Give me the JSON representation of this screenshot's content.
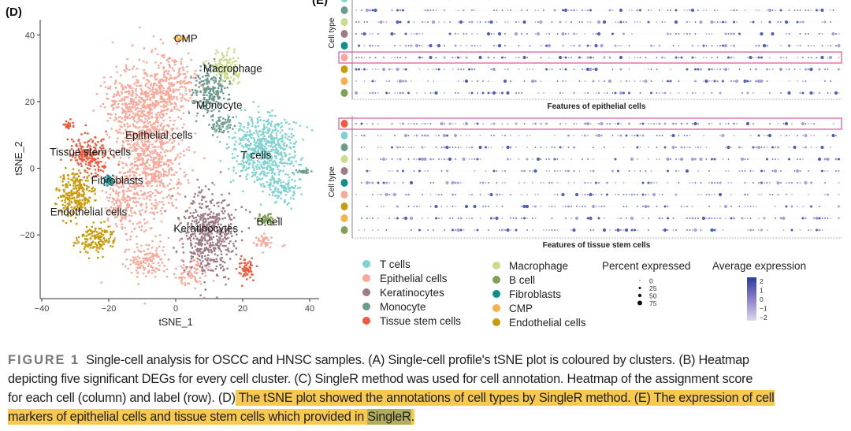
{
  "panel_d": {
    "label": "(D)"
  },
  "panel_e": {
    "label": "(E)"
  },
  "chart_data": [
    {
      "type": "scatter",
      "xlabel": "tSNE_1",
      "ylabel": "tSNE_2",
      "xlim": [
        -42,
        42
      ],
      "ylim": [
        -40,
        44
      ],
      "xticks": [
        -40,
        -20,
        0,
        20,
        40
      ],
      "yticks": [
        40,
        20,
        0,
        -20
      ],
      "grid": false,
      "clusters": [
        {
          "name": "Epithelial cells",
          "color": "#f9a899",
          "label_at": [
            -5,
            10
          ],
          "blobs": [
            [
              -8,
              5,
              7,
              15,
              900
            ],
            [
              -2,
              25,
              5,
              6,
              250
            ],
            [
              -13,
              20,
              6,
              6,
              250
            ],
            [
              -8,
              -28,
              5,
              3,
              120
            ],
            [
              5,
              -31,
              3,
              3,
              80
            ],
            [
              27,
              -22,
              2.5,
              1.5,
              40
            ],
            [
              -16,
              -10,
              3,
              6,
              150
            ]
          ]
        },
        {
          "name": "Macrophage",
          "color": "#c9dc8a",
          "label_at": [
            17,
            30
          ],
          "blobs": [
            [
              15,
              30,
              2.8,
              3,
              130
            ]
          ]
        },
        {
          "name": "Monocyte",
          "color": "#6f9a8e",
          "label_at": [
            13,
            19
          ],
          "blobs": [
            [
              10,
              23,
              3.5,
              4.5,
              200
            ],
            [
              13,
              13,
              2.5,
              2,
              60
            ],
            [
              38,
              -1,
              1.5,
              0.4,
              25
            ]
          ]
        },
        {
          "name": "T cells",
          "color": "#7fd3cf",
          "label_at": [
            24,
            4
          ],
          "blobs": [
            [
              26,
              5,
              6.5,
              7,
              600
            ],
            [
              32,
              -6,
              3,
              3,
              100
            ]
          ]
        },
        {
          "name": "Tissue stem cells",
          "color": "#ef5a3c",
          "label_at": [
            -25.5,
            5
          ],
          "blobs": [
            [
              -26,
              4,
              3.5,
              4,
              200
            ],
            [
              21,
              -30,
              1.8,
              2,
              60
            ],
            [
              -32,
              13,
              1.2,
              1,
              20
            ]
          ]
        },
        {
          "name": "Fibroblasts",
          "color": "#0f8f8e",
          "label_at": [
            -17.5,
            -3.5
          ],
          "blobs": [
            [
              -20,
              -3.5,
              1.2,
              1.2,
              40
            ]
          ]
        },
        {
          "name": "Endothelial cells",
          "color": "#c89c0c",
          "label_at": [
            -26,
            -13
          ],
          "blobs": [
            [
              -30,
              -8,
              3.5,
              4.5,
              250
            ],
            [
              -24,
              -21,
              3.5,
              3,
              150
            ]
          ]
        },
        {
          "name": "Keratinocytes",
          "color": "#9c7b86",
          "label_at": [
            9,
            -18
          ],
          "blobs": [
            [
              10,
              -20,
              5.5,
              8,
              500
            ]
          ]
        },
        {
          "name": "B cell",
          "color": "#7fa055",
          "label_at": [
            28,
            -16
          ],
          "blobs": [
            [
              27,
              -15.5,
              1.8,
              1.1,
              50
            ]
          ]
        },
        {
          "name": "CMP",
          "color": "#f7b04a",
          "label_at": [
            3,
            39
          ],
          "blobs": [
            [
              2,
              39,
              1.8,
              0.5,
              25
            ]
          ]
        }
      ]
    },
    {
      "type": "dotplot",
      "ylabel": "Cell type",
      "xlabel": "Features of epithelial cells",
      "rows": [
        "T cells",
        "Monocyte",
        "Macrophage",
        "Keratinocytes",
        "Fibroblasts",
        "Epithelial cells",
        "Endothelial cells",
        "CMP",
        "B cell"
      ],
      "highlighted_row": "Epithelial cells"
    },
    {
      "type": "dotplot",
      "ylabel": "Cell type",
      "xlabel": "Features of tissue stem cells",
      "rows": [
        "Tissue stem cells",
        "T cells",
        "Monocyte",
        "Macrophage",
        "Keratinocytes",
        "Fibroblasts",
        "Epithelial cells",
        "Endothelial cells",
        "CMP",
        "B cell"
      ],
      "highlighted_row": "Tissue stem cells"
    }
  ],
  "legend": {
    "cell_types_col1": [
      {
        "name": "T cells",
        "color": "#7fd3cf"
      },
      {
        "name": "Epithelial cells",
        "color": "#f9a899"
      },
      {
        "name": "Keratinocytes",
        "color": "#9c7b86"
      },
      {
        "name": "Monocyte",
        "color": "#6f9a8e"
      },
      {
        "name": "Tissue stem cells",
        "color": "#ef5a3c"
      }
    ],
    "cell_types_col2": [
      {
        "name": "Macrophage",
        "color": "#c9dc8a"
      },
      {
        "name": "B cell",
        "color": "#7fa055"
      },
      {
        "name": "Fibroblasts",
        "color": "#0f8f8e"
      },
      {
        "name": "CMP",
        "color": "#f7b04a"
      },
      {
        "name": "Endothelial cells",
        "color": "#c89c0c"
      }
    ],
    "percent_title": "Percent expressed",
    "percent_values": [
      "0",
      "25",
      "50",
      "75"
    ],
    "avg_title": "Average expression",
    "avg_ticks": [
      "2",
      "1",
      "0",
      "−1",
      "−2"
    ],
    "avg_colors": [
      "#2a3c9e",
      "#dcd8ec"
    ]
  },
  "caption": {
    "figure_label": "FIGURE 1",
    "highlight_color": "#f8c94f",
    "lines": [
      [
        {
          "text": "Single-cell analysis for OSCC and HNSC samples. (A) Single-cell profile's tSNE plot is coloured by clusters. (B) Heatmap",
          "hl": 0
        }
      ],
      [
        {
          "text": "depicting five significant DEGs for every cell cluster. (C) SingleR method was used for cell annotation. Heatmap of the assignment score",
          "hl": 0
        }
      ],
      [
        {
          "text": "for each cell (column) and label (row). (D)",
          "hl": 0
        },
        {
          "text": " The tSNE plot showed the annotations of cell types by SingleR method. (E) The expression of cell",
          "hl": 1
        }
      ],
      [
        {
          "text": "markers of epithelial cells and tissue stem cells which provided in ",
          "hl": 1
        },
        {
          "text": "SingleR",
          "hl": 2
        },
        {
          "text": ".",
          "hl": 1
        }
      ]
    ]
  }
}
